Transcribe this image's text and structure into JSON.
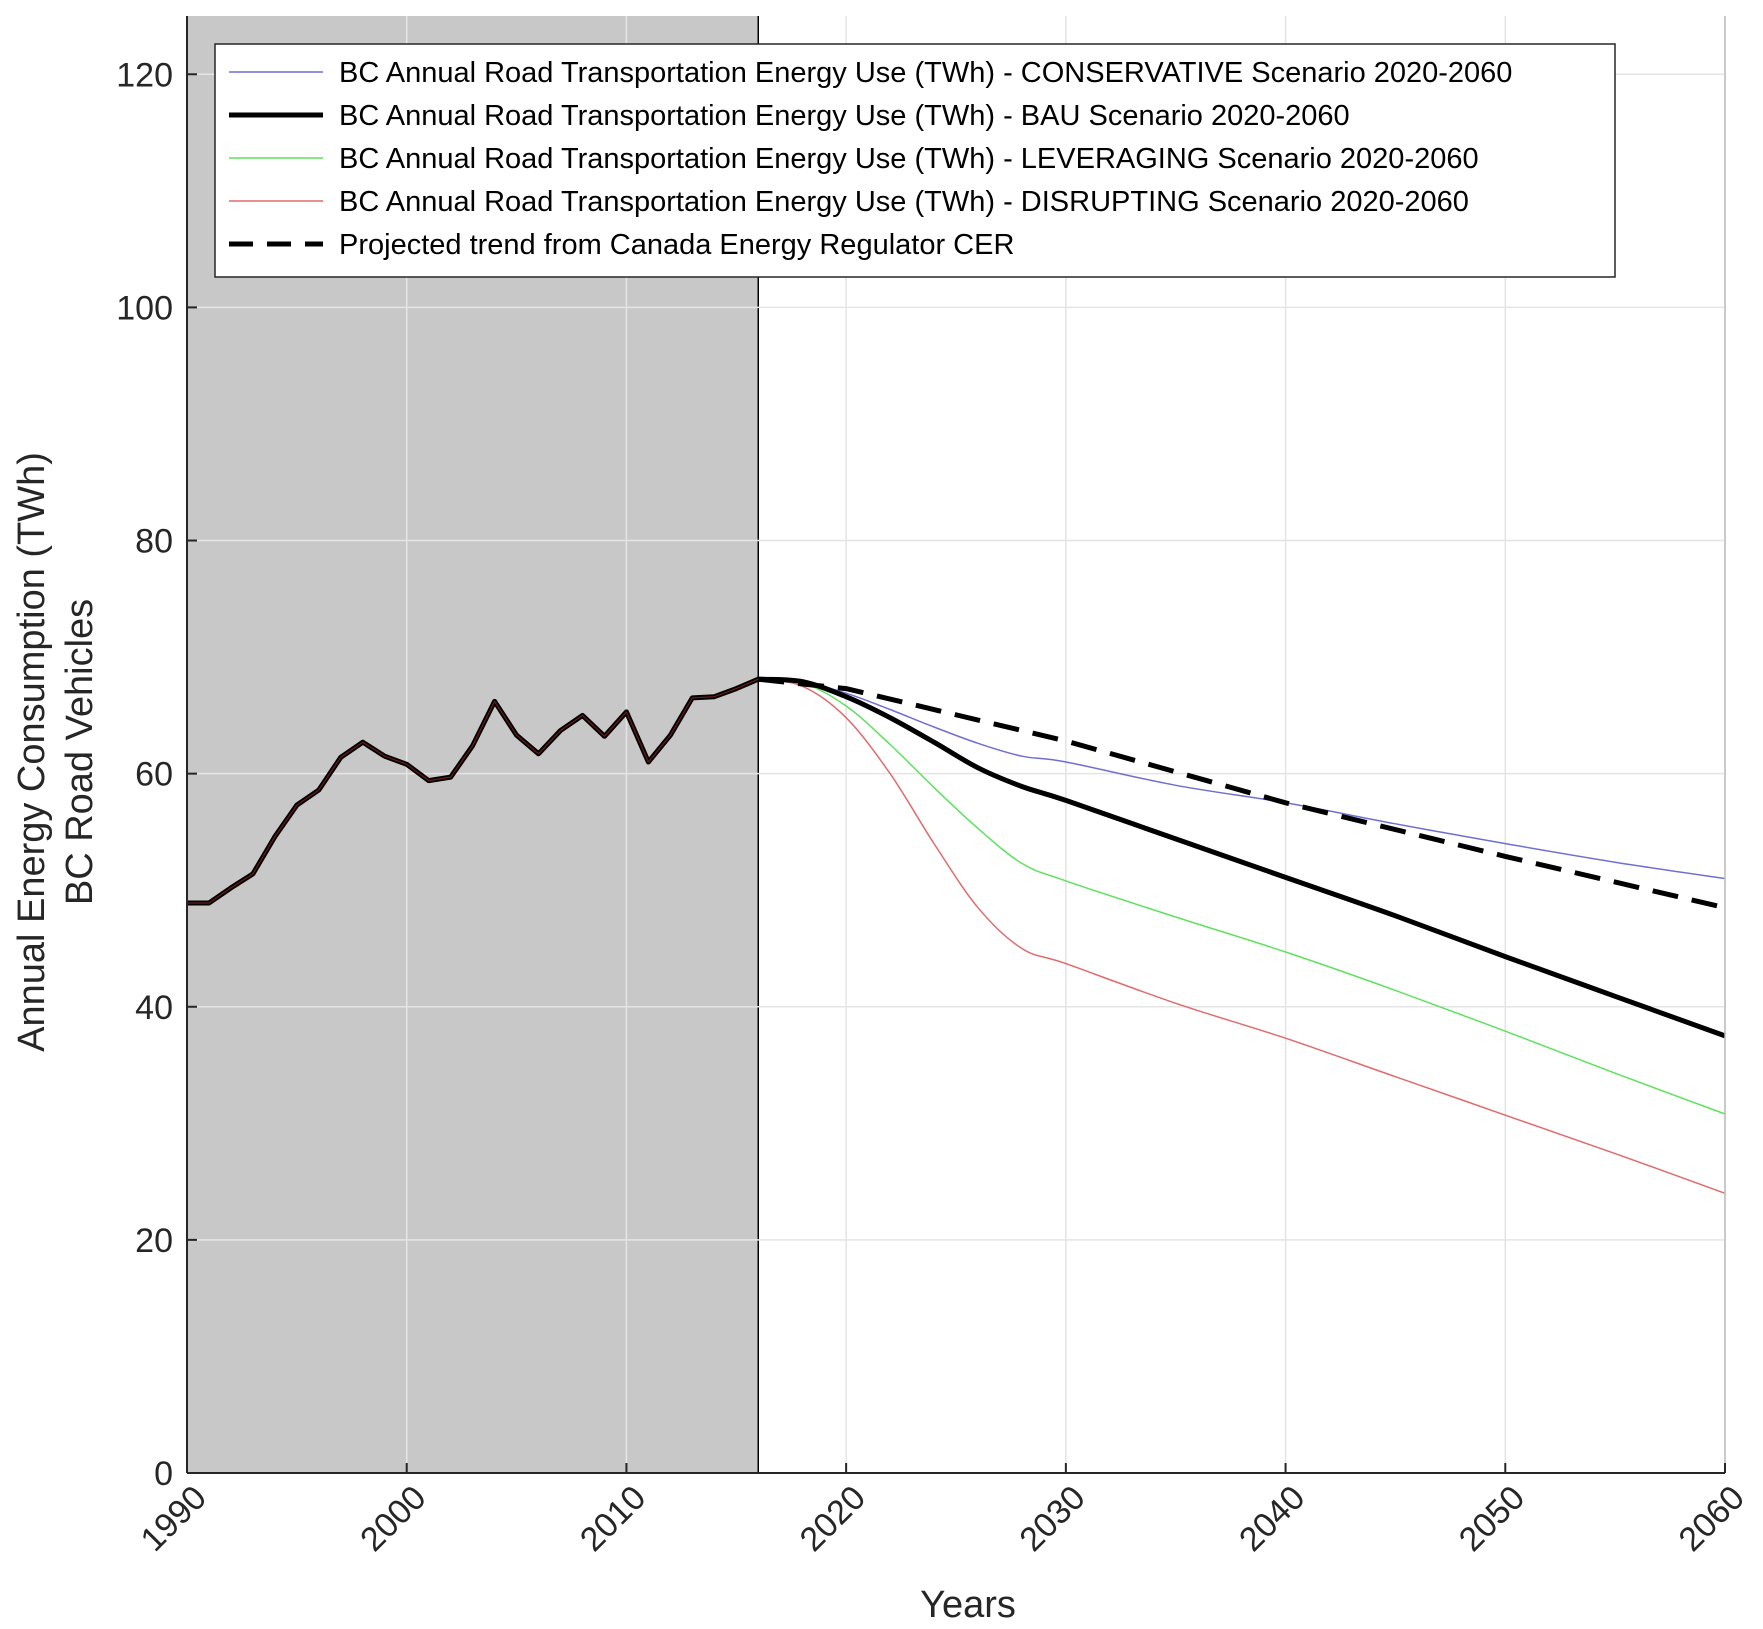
{
  "chart_data": {
    "type": "line",
    "title": "",
    "xlabel": "Years",
    "ylabel_lines": [
      "Annual Energy Consumption (TWh)",
      "BC Road Vehicles"
    ],
    "xlim": [
      1990,
      2060
    ],
    "ylim": [
      0,
      125
    ],
    "xticks": [
      1990,
      2000,
      2010,
      2020,
      2030,
      2040,
      2050,
      2060
    ],
    "yticks": [
      0,
      20,
      40,
      60,
      80,
      100,
      120
    ],
    "grid": true,
    "legend_position": "top-left (inside plot)",
    "historical_shade": {
      "x_start": 1990,
      "x_end": 2016,
      "color": "#c8c8c8"
    },
    "historical": {
      "x": [
        1990,
        1991,
        1992,
        1993,
        1994,
        1995,
        1996,
        1997,
        1998,
        1999,
        2000,
        2001,
        2002,
        2003,
        2004,
        2005,
        2006,
        2007,
        2008,
        2009,
        2010,
        2011,
        2012,
        2013,
        2014,
        2015,
        2016,
        2017
      ],
      "y": [
        48.9,
        48.9,
        50.2,
        51.4,
        54.6,
        57.3,
        58.6,
        61.4,
        62.7,
        61.5,
        60.8,
        59.4,
        59.7,
        62.4,
        66.2,
        63.3,
        61.7,
        63.7,
        65.0,
        63.2,
        65.3,
        61.0,
        63.3,
        66.5,
        66.6,
        67.3,
        68.1,
        68.0
      ]
    },
    "series": [
      {
        "name": "BC Annual Road Transportation Energy Use (TWh) - CONSERVATIVE Scenario 2020-2060",
        "color": "#6f6fd0",
        "width": 1.5,
        "dash": "",
        "x": [
          2016,
          2018,
          2020,
          2022,
          2024,
          2026,
          2028,
          2030,
          2035,
          2040,
          2045,
          2050,
          2055,
          2060
        ],
        "y": [
          68.1,
          67.9,
          66.9,
          65.5,
          64.0,
          62.6,
          61.5,
          61.0,
          59.0,
          57.5,
          55.7,
          54.0,
          52.4,
          51.0
        ]
      },
      {
        "name": "BC Annual Road Transportation Energy Use (TWh) - BAU Scenario 2020-2060",
        "color": "#000000",
        "width": 5,
        "dash": "",
        "x": [
          2016,
          2018,
          2020,
          2022,
          2024,
          2026,
          2028,
          2030,
          2035,
          2040,
          2045,
          2050,
          2055,
          2060
        ],
        "y": [
          68.1,
          67.9,
          66.6,
          64.8,
          62.7,
          60.5,
          58.9,
          57.7,
          54.4,
          51.1,
          47.8,
          44.3,
          40.9,
          37.5
        ]
      },
      {
        "name": "BC Annual Road Transportation Energy Use (TWh) - LEVERAGING Scenario 2020-2060",
        "color": "#5ee25e",
        "width": 1.5,
        "dash": "",
        "x": [
          2016,
          2018,
          2020,
          2022,
          2024,
          2026,
          2028,
          2030,
          2035,
          2040,
          2045,
          2050,
          2055,
          2060
        ],
        "y": [
          68.1,
          67.8,
          65.8,
          62.5,
          58.8,
          55.3,
          52.3,
          50.8,
          47.7,
          44.7,
          41.4,
          37.9,
          34.3,
          30.8
        ]
      },
      {
        "name": "BC Annual Road Transportation Energy Use (TWh) - DISRUPTING Scenario 2020-2060",
        "color": "#e06b6b",
        "width": 1.5,
        "dash": "",
        "x": [
          2016,
          2018,
          2020,
          2022,
          2024,
          2026,
          2028,
          2030,
          2035,
          2040,
          2045,
          2050,
          2055,
          2060
        ],
        "y": [
          68.1,
          67.5,
          64.8,
          60.0,
          54.0,
          48.5,
          45.0,
          43.7,
          40.3,
          37.3,
          34.0,
          30.7,
          27.4,
          24.0
        ]
      },
      {
        "name": "Projected trend from Canada Energy Regulator CER",
        "color": "#000000",
        "width": 5,
        "dash": "26,14",
        "x": [
          2016,
          2020,
          2030,
          2040,
          2050,
          2060
        ],
        "y": [
          68.1,
          67.3,
          62.8,
          57.5,
          52.9,
          48.5
        ]
      }
    ]
  }
}
